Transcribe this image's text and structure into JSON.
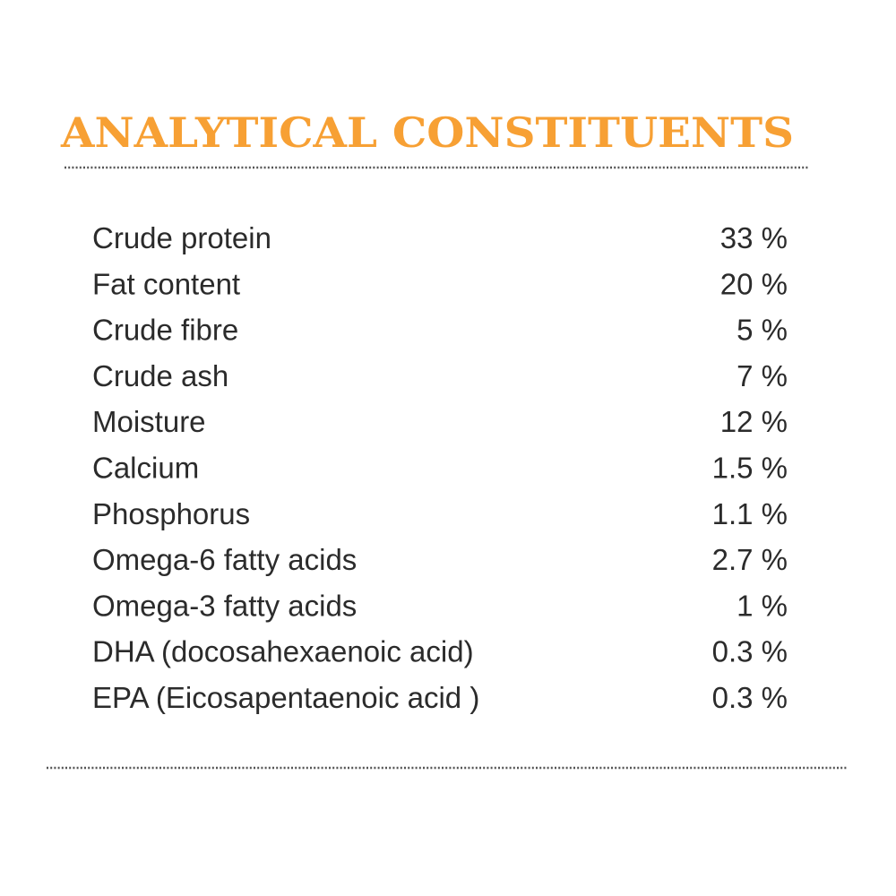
{
  "title": "ANALYTICAL CONSTITUENTS",
  "rows": [
    [
      "Crude protein",
      "33 %"
    ],
    [
      "Fat content",
      "20 %"
    ],
    [
      "Crude fibre",
      "5 %"
    ],
    [
      "Crude ash",
      "7 %"
    ],
    [
      "Moisture",
      "12 %"
    ],
    [
      "Calcium",
      "1.5 %"
    ],
    [
      "Phosphorus",
      "1.1 %"
    ],
    [
      "Omega-6 fatty acids",
      "2.7 %"
    ],
    [
      "Omega-3 fatty acids",
      "1 %"
    ],
    [
      "DHA (docosahexaenoic acid)",
      "0.3 %"
    ],
    [
      "EPA (Eicosapentaenoic acid )",
      "0.3 %"
    ]
  ]
}
